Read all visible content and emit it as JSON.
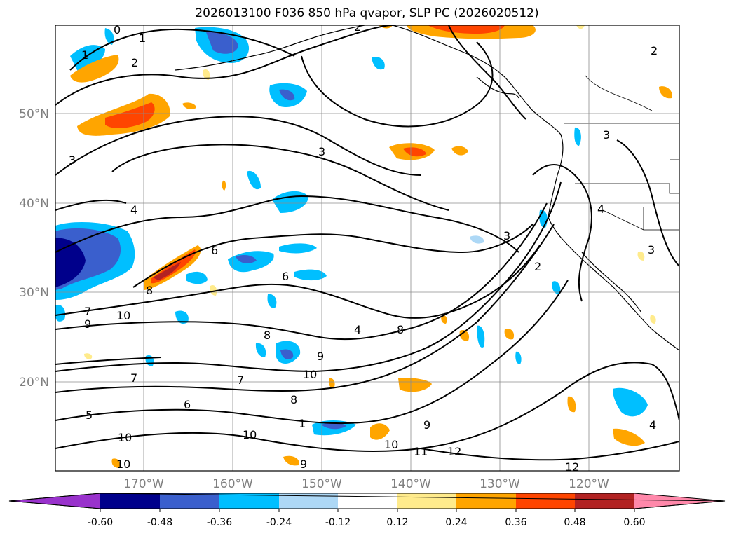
{
  "title": "2026013100 F036 850 hPa qvapor, SLP PC (2026020512)",
  "map": {
    "lon_labels": [
      "170°W",
      "160°W",
      "150°W",
      "140°W",
      "130°W",
      "120°W"
    ],
    "lat_labels": [
      "50°N",
      "40°N",
      "30°N",
      "20°N"
    ],
    "contour_labels": [
      "0",
      "1",
      "2",
      "2",
      "2",
      "3",
      "3",
      "3",
      "3",
      "4",
      "4",
      "4",
      "6",
      "6",
      "7",
      "7",
      "7",
      "8",
      "8",
      "8",
      "8",
      "9",
      "9",
      "9",
      "9",
      "10",
      "10",
      "10",
      "10",
      "10",
      "10",
      "11",
      "12",
      "12",
      "5",
      "6",
      "1",
      "1",
      "2",
      "3",
      "4"
    ]
  },
  "colorbar": {
    "ticks": [
      "-0.60",
      "-0.48",
      "-0.36",
      "-0.24",
      "-0.12",
      "0.12",
      "0.24",
      "0.36",
      "0.48",
      "0.60"
    ],
    "colors": [
      "#9932cc",
      "#00008b",
      "#3a5fcd",
      "#00bfff",
      "#add8f6",
      "#ffffff",
      "#ffeb8c",
      "#ffa500",
      "#ff4500",
      "#b22222",
      "#ff88aa"
    ]
  }
}
